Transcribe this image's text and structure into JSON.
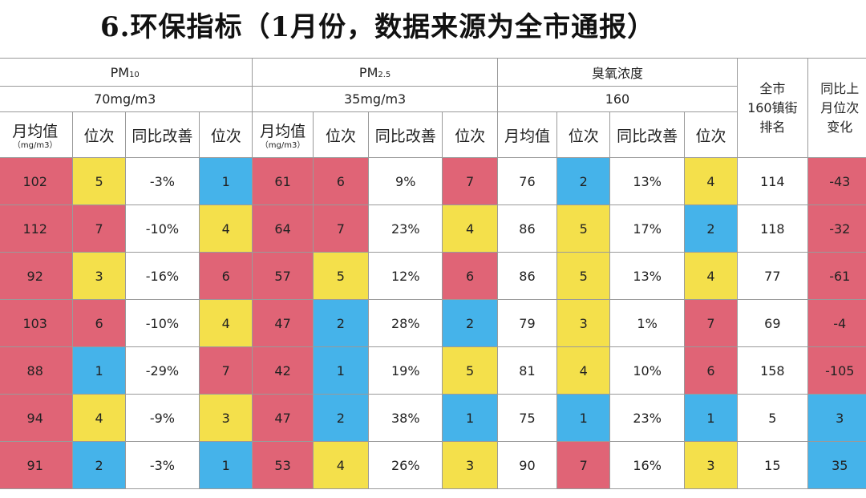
{
  "title": "6.环保指标（1月份，数据来源为全市通报）",
  "colors": {
    "red": "#e06476",
    "yellow": "#f4e04b",
    "blue": "#45b3ea"
  },
  "headers": {
    "pm10": {
      "main": "PM",
      "sub": "10",
      "std": "70mg/m3"
    },
    "pm25": {
      "main": "PM",
      "sub": "2.5",
      "std": "35mg/m3"
    },
    "ozone": {
      "name": "臭氧浓度",
      "std": "160"
    },
    "city_rank": [
      "全市",
      "160镇街",
      "排名"
    ],
    "yoy_change": [
      "同比上",
      "月位次",
      "变化"
    ],
    "monthly_avg": "月均值",
    "unit": "（mg/m3）",
    "rank": "位次",
    "yoy_improve": "同比改善"
  },
  "rows": [
    {
      "cells": [
        "102",
        "5",
        "-3%",
        "1",
        "61",
        "6",
        "9%",
        "7",
        "76",
        "2",
        "13%",
        "4",
        "114",
        "-43"
      ],
      "colors": [
        "red",
        "yel",
        "wht",
        "blu",
        "red",
        "red",
        "wht",
        "red",
        "wht",
        "blu",
        "wht",
        "yel",
        "wht",
        "red"
      ]
    },
    {
      "cells": [
        "112",
        "7",
        "-10%",
        "4",
        "64",
        "7",
        "23%",
        "4",
        "86",
        "5",
        "17%",
        "2",
        "118",
        "-32"
      ],
      "colors": [
        "red",
        "red",
        "wht",
        "yel",
        "red",
        "red",
        "wht",
        "yel",
        "wht",
        "yel",
        "wht",
        "blu",
        "wht",
        "red"
      ]
    },
    {
      "cells": [
        "92",
        "3",
        "-16%",
        "6",
        "57",
        "5",
        "12%",
        "6",
        "86",
        "5",
        "13%",
        "4",
        "77",
        "-61"
      ],
      "colors": [
        "red",
        "yel",
        "wht",
        "red",
        "red",
        "yel",
        "wht",
        "red",
        "wht",
        "yel",
        "wht",
        "yel",
        "wht",
        "red"
      ]
    },
    {
      "cells": [
        "103",
        "6",
        "-10%",
        "4",
        "47",
        "2",
        "28%",
        "2",
        "79",
        "3",
        "1%",
        "7",
        "69",
        "-4"
      ],
      "colors": [
        "red",
        "red",
        "wht",
        "yel",
        "red",
        "blu",
        "wht",
        "blu",
        "wht",
        "yel",
        "wht",
        "red",
        "wht",
        "red"
      ]
    },
    {
      "cells": [
        "88",
        "1",
        "-29%",
        "7",
        "42",
        "1",
        "19%",
        "5",
        "81",
        "4",
        "10%",
        "6",
        "158",
        "-105"
      ],
      "colors": [
        "red",
        "blu",
        "wht",
        "red",
        "red",
        "blu",
        "wht",
        "yel",
        "wht",
        "yel",
        "wht",
        "red",
        "wht",
        "red"
      ]
    },
    {
      "cells": [
        "94",
        "4",
        "-9%",
        "3",
        "47",
        "2",
        "38%",
        "1",
        "75",
        "1",
        "23%",
        "1",
        "5",
        "3"
      ],
      "colors": [
        "red",
        "yel",
        "wht",
        "yel",
        "red",
        "blu",
        "wht",
        "blu",
        "wht",
        "blu",
        "wht",
        "blu",
        "wht",
        "blu"
      ]
    },
    {
      "cells": [
        "91",
        "2",
        "-3%",
        "1",
        "53",
        "4",
        "26%",
        "3",
        "90",
        "7",
        "16%",
        "3",
        "15",
        "35"
      ],
      "colors": [
        "red",
        "blu",
        "wht",
        "blu",
        "red",
        "yel",
        "wht",
        "yel",
        "wht",
        "red",
        "wht",
        "yel",
        "wht",
        "blu"
      ]
    }
  ]
}
